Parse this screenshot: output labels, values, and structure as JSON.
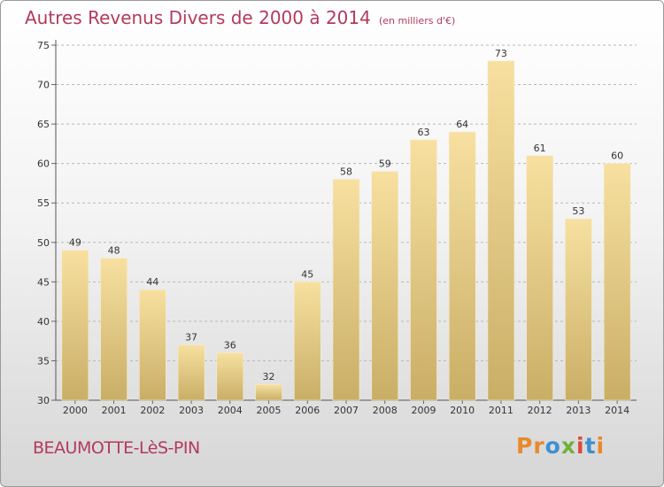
{
  "header": {
    "title": "Autres Revenus Divers de 2000 à 2014",
    "subtitle": "(en milliers d'€)"
  },
  "footer": {
    "city": "BEAUMOTTE-LèS-PIN",
    "logo": "Proxiti"
  },
  "colors": {
    "title": "#b33a5c",
    "bar_top": "#f7e0a0",
    "bar_bottom": "#c9ae66",
    "grid": "#b8b8b8"
  },
  "chart_data": {
    "type": "bar",
    "title": "Autres Revenus Divers de 2000 à 2014",
    "subtitle": "(en milliers d'€)",
    "categories": [
      "2000",
      "2001",
      "2002",
      "2003",
      "2004",
      "2005",
      "2006",
      "2007",
      "2008",
      "2009",
      "2010",
      "2011",
      "2012",
      "2013",
      "2014"
    ],
    "values": [
      49,
      48,
      44,
      37,
      36,
      32,
      45,
      58,
      59,
      63,
      64,
      73,
      61,
      53,
      60
    ],
    "ylim": [
      30,
      75
    ],
    "yticks": [
      30,
      35,
      40,
      45,
      50,
      55,
      60,
      65,
      70,
      75
    ],
    "grid": "horizontal dashed",
    "show_value_labels": true
  }
}
